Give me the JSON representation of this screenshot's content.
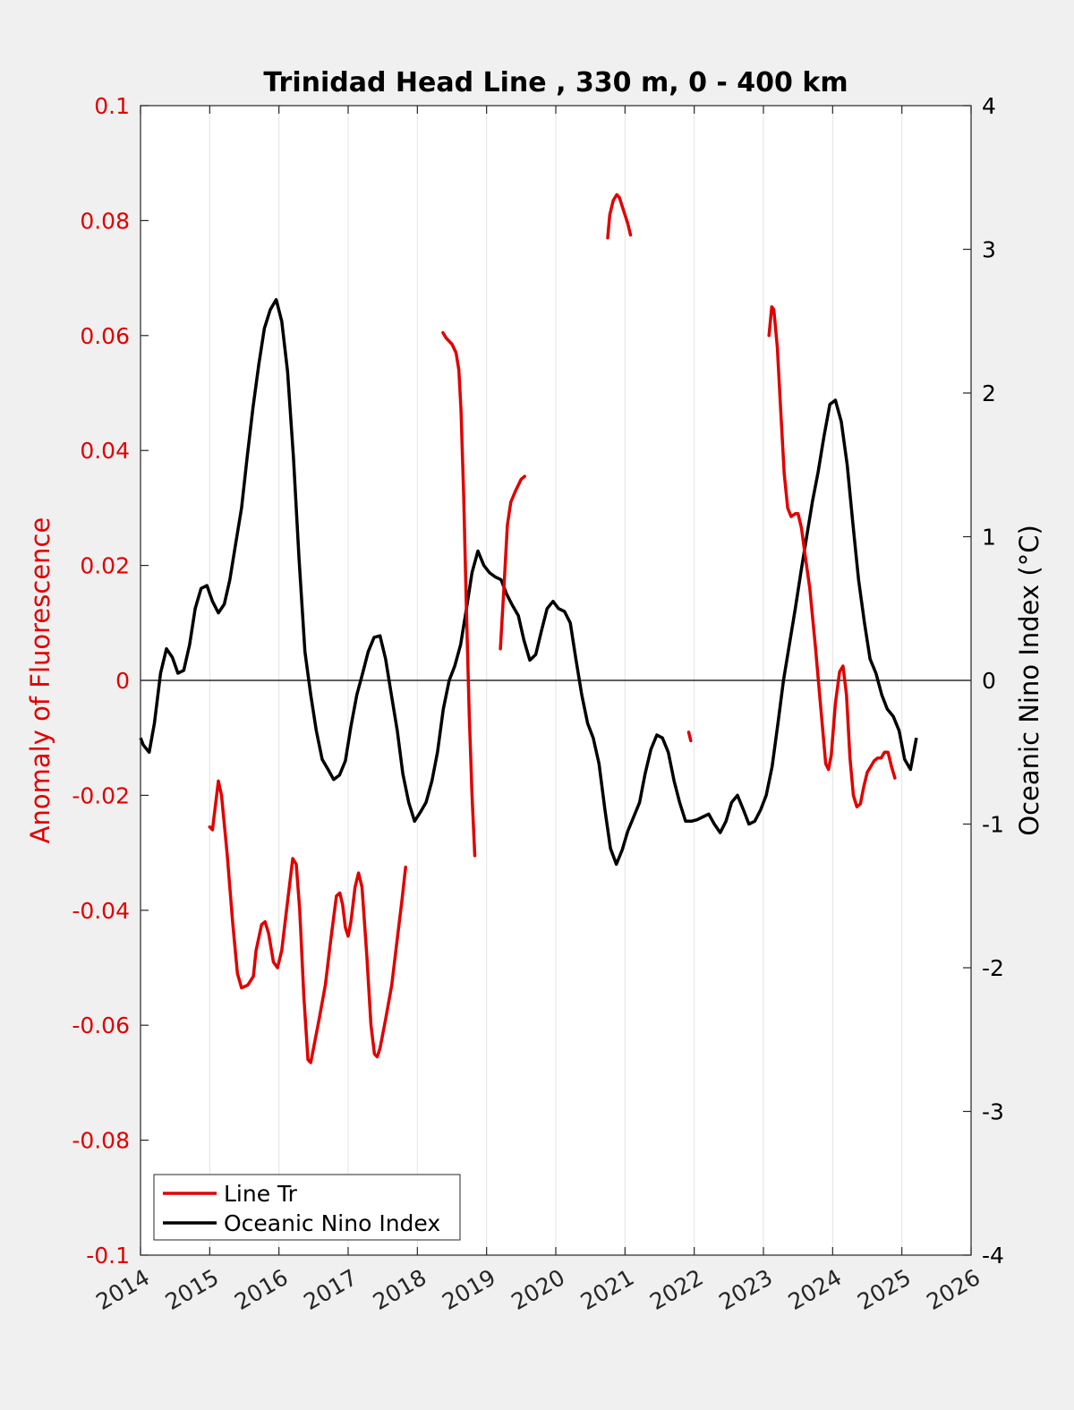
{
  "chart_data": {
    "type": "line",
    "title": "Trinidad Head Line , 330 m, 0 - 400 km",
    "xlim": [
      2014,
      2026
    ],
    "x_ticks": [
      "2014",
      "2015",
      "2016",
      "2017",
      "2018",
      "2019",
      "2020",
      "2021",
      "2022",
      "2023",
      "2024",
      "2025",
      "2026"
    ],
    "y_left": {
      "label": "Anomaly of Fluorescence",
      "range": [
        -0.1,
        0.1
      ],
      "ticks": [
        "-0.1",
        "-0.08",
        "-0.06",
        "-0.04",
        "-0.02",
        "0",
        "0.02",
        "0.04",
        "0.06",
        "0.08",
        "0.1"
      ],
      "color": "#e00000"
    },
    "y_right": {
      "label": "Oceanic Nino Index (°C)",
      "range": [
        -4,
        4
      ],
      "ticks": [
        "-4",
        "-3",
        "-2",
        "-1",
        "0",
        "1",
        "2",
        "3",
        "4"
      ],
      "color": "#000000"
    },
    "grid": "vertical",
    "legend_position": "bottom-left",
    "series": [
      {
        "name": "Line Tr",
        "axis": "left",
        "color": "#e00000",
        "segments": [
          [
            [
              2015.0,
              -0.0255
            ],
            [
              2015.04,
              -0.026
            ],
            [
              2015.08,
              -0.022
            ],
            [
              2015.125,
              -0.0175
            ],
            [
              2015.17,
              -0.02
            ],
            [
              2015.25,
              -0.03
            ],
            [
              2015.33,
              -0.042
            ],
            [
              2015.4,
              -0.051
            ],
            [
              2015.46,
              -0.0535
            ],
            [
              2015.55,
              -0.053
            ],
            [
              2015.63,
              -0.0515
            ],
            [
              2015.67,
              -0.047
            ],
            [
              2015.75,
              -0.0425
            ],
            [
              2015.8,
              -0.042
            ],
            [
              2015.85,
              -0.044
            ],
            [
              2015.92,
              -0.049
            ],
            [
              2015.98,
              -0.05
            ],
            [
              2016.04,
              -0.047
            ],
            [
              2016.12,
              -0.039
            ],
            [
              2016.2,
              -0.031
            ],
            [
              2016.25,
              -0.032
            ],
            [
              2016.3,
              -0.04
            ],
            [
              2016.36,
              -0.055
            ],
            [
              2016.42,
              -0.066
            ],
            [
              2016.46,
              -0.0665
            ],
            [
              2016.5,
              -0.064
            ],
            [
              2016.58,
              -0.059
            ],
            [
              2016.67,
              -0.053
            ],
            [
              2016.75,
              -0.045
            ],
            [
              2016.83,
              -0.0375
            ],
            [
              2016.88,
              -0.037
            ],
            [
              2016.92,
              -0.039
            ],
            [
              2016.96,
              -0.043
            ],
            [
              2017.0,
              -0.0445
            ],
            [
              2017.04,
              -0.042
            ],
            [
              2017.1,
              -0.036
            ],
            [
              2017.15,
              -0.0335
            ],
            [
              2017.2,
              -0.036
            ],
            [
              2017.27,
              -0.048
            ],
            [
              2017.33,
              -0.06
            ],
            [
              2017.38,
              -0.065
            ],
            [
              2017.42,
              -0.0655
            ],
            [
              2017.46,
              -0.064
            ],
            [
              2017.54,
              -0.059
            ],
            [
              2017.63,
              -0.053
            ],
            [
              2017.7,
              -0.046
            ],
            [
              2017.78,
              -0.038
            ],
            [
              2017.83,
              -0.0325
            ]
          ],
          [
            [
              2018.37,
              0.0605
            ],
            [
              2018.42,
              0.0595
            ],
            [
              2018.5,
              0.0585
            ],
            [
              2018.56,
              0.057
            ],
            [
              2018.6,
              0.054
            ],
            [
              2018.63,
              0.047
            ],
            [
              2018.67,
              0.032
            ],
            [
              2018.71,
              0.012
            ],
            [
              2018.75,
              -0.006
            ],
            [
              2018.79,
              -0.02
            ],
            [
              2018.83,
              -0.0305
            ]
          ],
          [
            [
              2019.2,
              0.0055
            ],
            [
              2019.25,
              0.016
            ],
            [
              2019.3,
              0.027
            ],
            [
              2019.35,
              0.031
            ],
            [
              2019.42,
              0.033
            ],
            [
              2019.5,
              0.035
            ],
            [
              2019.55,
              0.0355
            ]
          ],
          [
            [
              2020.75,
              0.077
            ],
            [
              2020.78,
              0.081
            ],
            [
              2020.83,
              0.0835
            ],
            [
              2020.88,
              0.0845
            ],
            [
              2020.92,
              0.084
            ],
            [
              2020.96,
              0.0825
            ],
            [
              2021.0,
              0.081
            ],
            [
              2021.04,
              0.0795
            ],
            [
              2021.08,
              0.0775
            ]
          ],
          [
            [
              2021.92,
              -0.009
            ],
            [
              2021.95,
              -0.0105
            ]
          ],
          [
            [
              2023.08,
              0.06
            ],
            [
              2023.12,
              0.065
            ],
            [
              2023.15,
              0.0645
            ],
            [
              2023.2,
              0.058
            ],
            [
              2023.25,
              0.047
            ],
            [
              2023.3,
              0.036
            ],
            [
              2023.35,
              0.03
            ],
            [
              2023.4,
              0.0285
            ],
            [
              2023.46,
              0.029
            ],
            [
              2023.5,
              0.029
            ],
            [
              2023.55,
              0.0265
            ],
            [
              2023.6,
              0.022
            ],
            [
              2023.67,
              0.016
            ],
            [
              2023.75,
              0.006
            ],
            [
              2023.83,
              -0.005
            ],
            [
              2023.9,
              -0.0145
            ],
            [
              2023.94,
              -0.0155
            ],
            [
              2023.98,
              -0.013
            ],
            [
              2024.04,
              -0.004
            ],
            [
              2024.1,
              0.0015
            ],
            [
              2024.15,
              0.0025
            ],
            [
              2024.2,
              -0.0025
            ],
            [
              2024.25,
              -0.0135
            ],
            [
              2024.3,
              -0.02
            ],
            [
              2024.35,
              -0.022
            ],
            [
              2024.4,
              -0.0215
            ],
            [
              2024.45,
              -0.0185
            ],
            [
              2024.5,
              -0.016
            ],
            [
              2024.55,
              -0.015
            ],
            [
              2024.6,
              -0.014
            ],
            [
              2024.65,
              -0.0135
            ],
            [
              2024.7,
              -0.0135
            ],
            [
              2024.75,
              -0.0125
            ],
            [
              2024.8,
              -0.0125
            ],
            [
              2024.85,
              -0.015
            ],
            [
              2024.9,
              -0.017
            ]
          ]
        ]
      },
      {
        "name": "Oceanic Nino Index",
        "axis": "right",
        "color": "#000000",
        "points": [
          [
            2014.0,
            -0.4
          ],
          [
            2014.04,
            -0.45
          ],
          [
            2014.125,
            -0.5
          ],
          [
            2014.2,
            -0.3
          ],
          [
            2014.29,
            0.05
          ],
          [
            2014.375,
            0.22
          ],
          [
            2014.46,
            0.16
          ],
          [
            2014.54,
            0.05
          ],
          [
            2014.625,
            0.07
          ],
          [
            2014.71,
            0.25
          ],
          [
            2014.79,
            0.5
          ],
          [
            2014.875,
            0.64
          ],
          [
            2014.96,
            0.66
          ],
          [
            2015.04,
            0.55
          ],
          [
            2015.125,
            0.47
          ],
          [
            2015.21,
            0.53
          ],
          [
            2015.29,
            0.7
          ],
          [
            2015.375,
            0.95
          ],
          [
            2015.46,
            1.2
          ],
          [
            2015.54,
            1.55
          ],
          [
            2015.625,
            1.9
          ],
          [
            2015.71,
            2.2
          ],
          [
            2015.79,
            2.45
          ],
          [
            2015.875,
            2.58
          ],
          [
            2015.96,
            2.65
          ],
          [
            2016.04,
            2.5
          ],
          [
            2016.125,
            2.15
          ],
          [
            2016.21,
            1.55
          ],
          [
            2016.29,
            0.85
          ],
          [
            2016.375,
            0.2
          ],
          [
            2016.46,
            -0.1
          ],
          [
            2016.54,
            -0.35
          ],
          [
            2016.625,
            -0.55
          ],
          [
            2016.71,
            -0.62
          ],
          [
            2016.79,
            -0.69
          ],
          [
            2016.875,
            -0.66
          ],
          [
            2016.96,
            -0.56
          ],
          [
            2017.04,
            -0.32
          ],
          [
            2017.125,
            -0.1
          ],
          [
            2017.21,
            0.05
          ],
          [
            2017.29,
            0.2
          ],
          [
            2017.375,
            0.3
          ],
          [
            2017.46,
            0.31
          ],
          [
            2017.54,
            0.15
          ],
          [
            2017.625,
            -0.1
          ],
          [
            2017.71,
            -0.35
          ],
          [
            2017.79,
            -0.65
          ],
          [
            2017.875,
            -0.85
          ],
          [
            2017.96,
            -0.98
          ],
          [
            2018.04,
            -0.92
          ],
          [
            2018.125,
            -0.85
          ],
          [
            2018.21,
            -0.7
          ],
          [
            2018.29,
            -0.5
          ],
          [
            2018.375,
            -0.2
          ],
          [
            2018.46,
            0.0
          ],
          [
            2018.54,
            0.1
          ],
          [
            2018.625,
            0.25
          ],
          [
            2018.71,
            0.5
          ],
          [
            2018.79,
            0.75
          ],
          [
            2018.875,
            0.9
          ],
          [
            2018.96,
            0.8
          ],
          [
            2019.04,
            0.75
          ],
          [
            2019.125,
            0.72
          ],
          [
            2019.21,
            0.7
          ],
          [
            2019.29,
            0.6
          ],
          [
            2019.375,
            0.52
          ],
          [
            2019.46,
            0.45
          ],
          [
            2019.54,
            0.28
          ],
          [
            2019.625,
            0.14
          ],
          [
            2019.71,
            0.18
          ],
          [
            2019.79,
            0.34
          ],
          [
            2019.875,
            0.5
          ],
          [
            2019.96,
            0.55
          ],
          [
            2020.04,
            0.5
          ],
          [
            2020.125,
            0.48
          ],
          [
            2020.21,
            0.4
          ],
          [
            2020.29,
            0.15
          ],
          [
            2020.375,
            -0.1
          ],
          [
            2020.46,
            -0.3
          ],
          [
            2020.54,
            -0.4
          ],
          [
            2020.625,
            -0.58
          ],
          [
            2020.71,
            -0.9
          ],
          [
            2020.79,
            -1.17
          ],
          [
            2020.875,
            -1.28
          ],
          [
            2020.96,
            -1.18
          ],
          [
            2021.04,
            -1.05
          ],
          [
            2021.125,
            -0.95
          ],
          [
            2021.21,
            -0.85
          ],
          [
            2021.29,
            -0.65
          ],
          [
            2021.375,
            -0.48
          ],
          [
            2021.46,
            -0.38
          ],
          [
            2021.54,
            -0.4
          ],
          [
            2021.625,
            -0.5
          ],
          [
            2021.71,
            -0.7
          ],
          [
            2021.79,
            -0.85
          ],
          [
            2021.875,
            -0.98
          ],
          [
            2021.96,
            -0.98
          ],
          [
            2022.04,
            -0.97
          ],
          [
            2022.125,
            -0.95
          ],
          [
            2022.21,
            -0.93
          ],
          [
            2022.29,
            -1.0
          ],
          [
            2022.375,
            -1.06
          ],
          [
            2022.46,
            -0.98
          ],
          [
            2022.54,
            -0.85
          ],
          [
            2022.625,
            -0.8
          ],
          [
            2022.71,
            -0.9
          ],
          [
            2022.79,
            -1.0
          ],
          [
            2022.875,
            -0.98
          ],
          [
            2022.96,
            -0.9
          ],
          [
            2023.04,
            -0.8
          ],
          [
            2023.125,
            -0.6
          ],
          [
            2023.21,
            -0.3
          ],
          [
            2023.29,
            0.0
          ],
          [
            2023.375,
            0.25
          ],
          [
            2023.46,
            0.5
          ],
          [
            2023.54,
            0.75
          ],
          [
            2023.625,
            1.0
          ],
          [
            2023.71,
            1.25
          ],
          [
            2023.79,
            1.45
          ],
          [
            2023.875,
            1.7
          ],
          [
            2023.96,
            1.92
          ],
          [
            2024.04,
            1.95
          ],
          [
            2024.125,
            1.8
          ],
          [
            2024.21,
            1.5
          ],
          [
            2024.29,
            1.1
          ],
          [
            2024.375,
            0.7
          ],
          [
            2024.46,
            0.4
          ],
          [
            2024.54,
            0.15
          ],
          [
            2024.625,
            0.05
          ],
          [
            2024.71,
            -0.1
          ],
          [
            2024.79,
            -0.2
          ],
          [
            2024.875,
            -0.25
          ],
          [
            2024.96,
            -0.35
          ],
          [
            2025.04,
            -0.55
          ],
          [
            2025.125,
            -0.62
          ],
          [
            2025.21,
            -0.4
          ]
        ]
      }
    ]
  }
}
